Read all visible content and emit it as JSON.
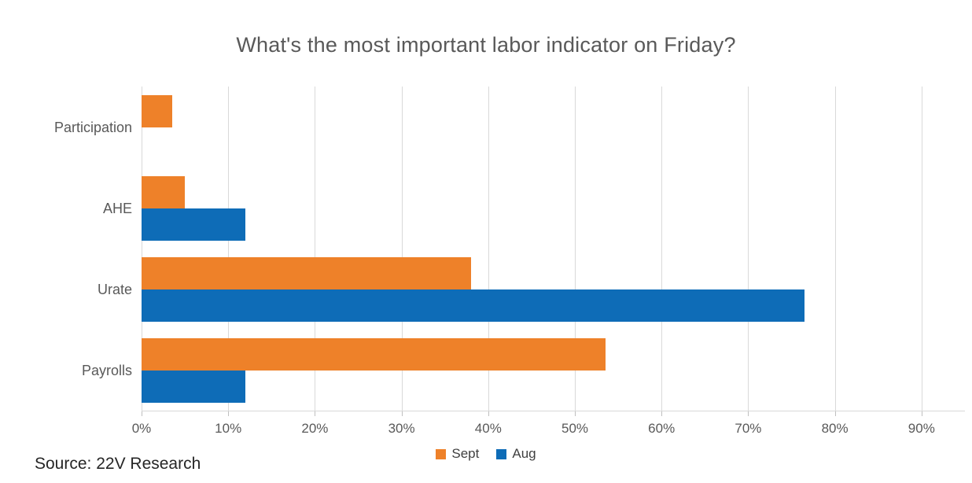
{
  "chart_data": {
    "type": "bar",
    "orientation": "horizontal",
    "title": "What's the most important labor indicator on Friday?",
    "categories": [
      "Participation",
      "AHE",
      "Urate",
      "Payrolls"
    ],
    "series": [
      {
        "name": "Sept",
        "color": "#EE8129",
        "values": [
          3.5,
          5,
          38,
          53.5
        ]
      },
      {
        "name": "Aug",
        "color": "#0E6CB7",
        "values": [
          0,
          12,
          76.5,
          12
        ]
      }
    ],
    "x_ticks": [
      0,
      10,
      20,
      30,
      40,
      50,
      60,
      70,
      80,
      90
    ],
    "x_tick_labels": [
      "0%",
      "10%",
      "20%",
      "30%",
      "40%",
      "50%",
      "60%",
      "70%",
      "80%",
      "90%"
    ],
    "xlim": [
      0,
      95.8
    ],
    "grid": true,
    "legend_position": "bottom",
    "source": "Source: 22V Research"
  }
}
